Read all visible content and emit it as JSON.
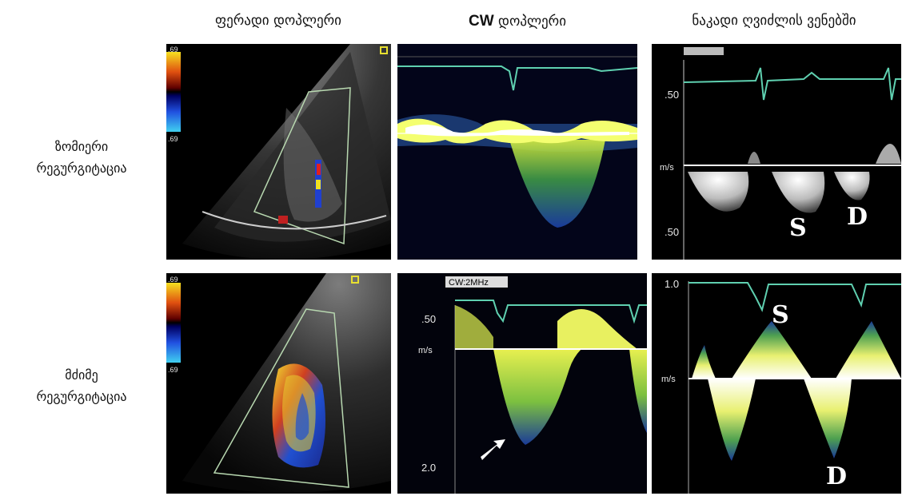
{
  "columns": {
    "color_doppler": "ფერადი დოპლერი",
    "cw_prefix": "CW",
    "cw_suffix": " დოპლერი",
    "hepatic_vein_flow": "ნაკადი ღვიძლის ვენებში"
  },
  "rows": {
    "mild_line1": "ზომიერი",
    "mild_line2": "რეგურგიტაცია",
    "severe_line1": "მძიმე",
    "severe_line2": "რეგურგიტაცია"
  },
  "panels": {
    "top_color": {
      "scale_top": ".69",
      "scale_bottom": ".69"
    },
    "bottom_color": {
      "scale_top": ".69",
      "scale_bottom": ".69"
    },
    "top_hepatic": {
      "tick_top": ".50",
      "unit": "m/s",
      "tick_bottom": ".50",
      "label_s": "S",
      "label_d": "D"
    },
    "bottom_cw": {
      "header": "CW:2MHz",
      "tick_top": ".50",
      "unit": "m/s",
      "tick_bottom": "2.0"
    },
    "bottom_hepatic": {
      "tick_top": "1.0",
      "unit": "m/s",
      "label_s": "S",
      "label_d": "D"
    }
  },
  "colors": {
    "ecg": "#5fd0b0",
    "flow_yellow": "#e8f040",
    "flow_blue": "#1f4fb0",
    "baseline": "#ffffff"
  }
}
